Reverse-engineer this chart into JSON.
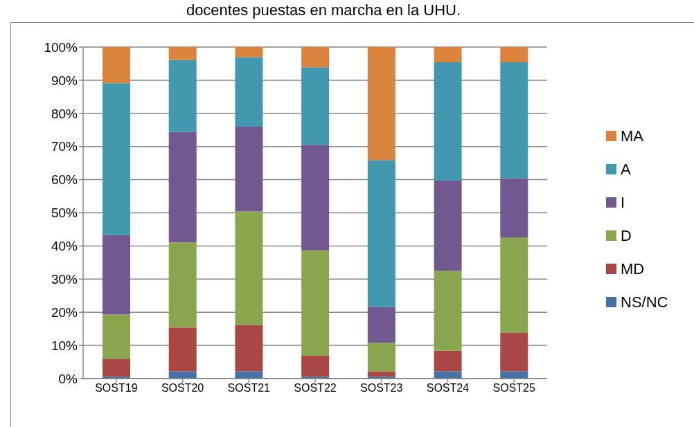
{
  "chart_data": {
    "type": "bar",
    "title": "docentes puestas en marcha en la UHU.",
    "categories": [
      "SOST19",
      "SOST20",
      "SOST21",
      "SOST22",
      "SOST23",
      "SOST24",
      "SOST25"
    ],
    "stacked": true,
    "series": [
      {
        "name": "NS/NC",
        "color": "#4572a7",
        "values": [
          0.6,
          2.2,
          2.2,
          0.6,
          0.6,
          2.2,
          2.2
        ]
      },
      {
        "name": "MD",
        "color": "#aa4643",
        "values": [
          5.4,
          13.2,
          14.0,
          6.3,
          1.6,
          6.2,
          11.6
        ]
      },
      {
        "name": "D",
        "color": "#89a54e",
        "values": [
          13.3,
          25.7,
          34.2,
          31.8,
          8.6,
          24.1,
          28.8
        ]
      },
      {
        "name": "I",
        "color": "#71588f",
        "values": [
          24.0,
          33.3,
          25.6,
          31.8,
          10.8,
          27.2,
          17.8
        ]
      },
      {
        "name": "A",
        "color": "#4198af",
        "values": [
          45.8,
          21.7,
          20.9,
          23.4,
          44.3,
          35.7,
          35.0
        ]
      },
      {
        "name": "MA",
        "color": "#db843d",
        "values": [
          10.9,
          3.9,
          3.1,
          6.1,
          34.1,
          4.6,
          4.6
        ]
      }
    ],
    "ylim": [
      0,
      100
    ],
    "yticks": [
      {
        "value": 0,
        "label": "0%"
      },
      {
        "value": 10,
        "label": "10%"
      },
      {
        "value": 20,
        "label": "20%"
      },
      {
        "value": 30,
        "label": "30%"
      },
      {
        "value": 40,
        "label": "40%"
      },
      {
        "value": 50,
        "label": "50%"
      },
      {
        "value": 60,
        "label": "60%"
      },
      {
        "value": 70,
        "label": "70%"
      },
      {
        "value": 80,
        "label": "80%"
      },
      {
        "value": 90,
        "label": "90%"
      },
      {
        "value": 100,
        "label": "100%"
      }
    ],
    "grid": "y",
    "legend": "right"
  }
}
